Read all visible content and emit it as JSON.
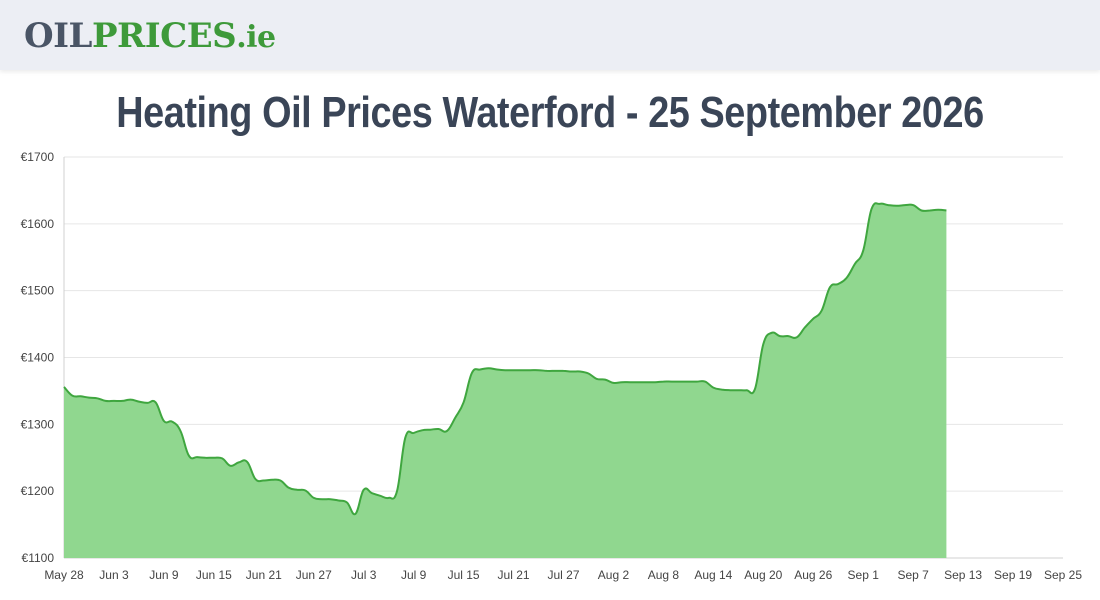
{
  "header": {
    "logo": {
      "part1": "OIL",
      "part2": "PRICES",
      "part3": ".ie"
    }
  },
  "colors": {
    "header_bg": "#eceef4",
    "logo_dark": "#4a5566",
    "logo_green": "#3e9a3a",
    "title": "#3a4557",
    "line": "#3fa63f",
    "area_fill": "#90d78f",
    "grid": "#e6e6e6"
  },
  "chart_data": {
    "type": "area",
    "title": "Heating Oil Prices Waterford - 25 September 2026",
    "xlabel": "",
    "ylabel": "",
    "y_prefix": "€",
    "ylim": [
      1100,
      1700
    ],
    "y_ticks": [
      1100,
      1200,
      1300,
      1400,
      1500,
      1600,
      1700
    ],
    "grid": true,
    "legend": "none",
    "start_date": "May 28",
    "x_ticks": [
      "May 28",
      "Jun 3",
      "Jun 9",
      "Jun 15",
      "Jun 21",
      "Jun 27",
      "Jul 3",
      "Jul 9",
      "Jul 15",
      "Jul 21",
      "Jul 27",
      "Aug 2",
      "Aug 8",
      "Aug 14",
      "Aug 20",
      "Aug 26",
      "Sep 1",
      "Sep 7",
      "Sep 13",
      "Sep 19",
      "Sep 25"
    ],
    "series": [
      {
        "values": [
          {
            "x": "May 28",
            "y": 1356
          },
          {
            "x": "May 29",
            "y": 1343
          },
          {
            "x": "May 30",
            "y": 1342
          },
          {
            "x": "May 31",
            "y": 1340
          },
          {
            "x": "Jun 1",
            "y": 1339
          },
          {
            "x": "Jun 2",
            "y": 1335
          },
          {
            "x": "Jun 3",
            "y": 1335
          },
          {
            "x": "Jun 4",
            "y": 1335
          },
          {
            "x": "Jun 5",
            "y": 1337
          },
          {
            "x": "Jun 6",
            "y": 1334
          },
          {
            "x": "Jun 7",
            "y": 1332
          },
          {
            "x": "Jun 8",
            "y": 1333
          },
          {
            "x": "Jun 9",
            "y": 1305
          },
          {
            "x": "Jun 10",
            "y": 1304
          },
          {
            "x": "Jun 11",
            "y": 1290
          },
          {
            "x": "Jun 12",
            "y": 1253
          },
          {
            "x": "Jun 13",
            "y": 1251
          },
          {
            "x": "Jun 14",
            "y": 1250
          },
          {
            "x": "Jun 15",
            "y": 1250
          },
          {
            "x": "Jun 16",
            "y": 1249
          },
          {
            "x": "Jun 17",
            "y": 1238
          },
          {
            "x": "Jun 18",
            "y": 1243
          },
          {
            "x": "Jun 19",
            "y": 1244
          },
          {
            "x": "Jun 20",
            "y": 1218
          },
          {
            "x": "Jun 21",
            "y": 1216
          },
          {
            "x": "Jun 22",
            "y": 1217
          },
          {
            "x": "Jun 23",
            "y": 1216
          },
          {
            "x": "Jun 24",
            "y": 1205
          },
          {
            "x": "Jun 25",
            "y": 1202
          },
          {
            "x": "Jun 26",
            "y": 1201
          },
          {
            "x": "Jun 27",
            "y": 1190
          },
          {
            "x": "Jun 28",
            "y": 1188
          },
          {
            "x": "Jun 29",
            "y": 1188
          },
          {
            "x": "Jun 30",
            "y": 1186
          },
          {
            "x": "Jul 1",
            "y": 1183
          },
          {
            "x": "Jul 2",
            "y": 1166
          },
          {
            "x": "Jul 3",
            "y": 1202
          },
          {
            "x": "Jul 4",
            "y": 1197
          },
          {
            "x": "Jul 5",
            "y": 1193
          },
          {
            "x": "Jul 6",
            "y": 1190
          },
          {
            "x": "Jul 7",
            "y": 1200
          },
          {
            "x": "Jul 8",
            "y": 1280
          },
          {
            "x": "Jul 9",
            "y": 1287
          },
          {
            "x": "Jul 10",
            "y": 1291
          },
          {
            "x": "Jul 11",
            "y": 1292
          },
          {
            "x": "Jul 12",
            "y": 1293
          },
          {
            "x": "Jul 13",
            "y": 1290
          },
          {
            "x": "Jul 14",
            "y": 1310
          },
          {
            "x": "Jul 15",
            "y": 1333
          },
          {
            "x": "Jul 16",
            "y": 1377
          },
          {
            "x": "Jul 17",
            "y": 1382
          },
          {
            "x": "Jul 18",
            "y": 1384
          },
          {
            "x": "Jul 19",
            "y": 1382
          },
          {
            "x": "Jul 20",
            "y": 1381
          },
          {
            "x": "Jul 21",
            "y": 1381
          },
          {
            "x": "Jul 22",
            "y": 1381
          },
          {
            "x": "Jul 23",
            "y": 1381
          },
          {
            "x": "Jul 24",
            "y": 1381
          },
          {
            "x": "Jul 25",
            "y": 1380
          },
          {
            "x": "Jul 26",
            "y": 1380
          },
          {
            "x": "Jul 27",
            "y": 1380
          },
          {
            "x": "Jul 28",
            "y": 1379
          },
          {
            "x": "Jul 29",
            "y": 1379
          },
          {
            "x": "Jul 30",
            "y": 1376
          },
          {
            "x": "Jul 31",
            "y": 1368
          },
          {
            "x": "Aug 1",
            "y": 1367
          },
          {
            "x": "Aug 2",
            "y": 1362
          },
          {
            "x": "Aug 3",
            "y": 1363
          },
          {
            "x": "Aug 4",
            "y": 1363
          },
          {
            "x": "Aug 5",
            "y": 1363
          },
          {
            "x": "Aug 6",
            "y": 1363
          },
          {
            "x": "Aug 7",
            "y": 1363
          },
          {
            "x": "Aug 8",
            "y": 1364
          },
          {
            "x": "Aug 9",
            "y": 1364
          },
          {
            "x": "Aug 10",
            "y": 1364
          },
          {
            "x": "Aug 11",
            "y": 1364
          },
          {
            "x": "Aug 12",
            "y": 1364
          },
          {
            "x": "Aug 13",
            "y": 1364
          },
          {
            "x": "Aug 14",
            "y": 1355
          },
          {
            "x": "Aug 15",
            "y": 1352
          },
          {
            "x": "Aug 16",
            "y": 1351
          },
          {
            "x": "Aug 17",
            "y": 1351
          },
          {
            "x": "Aug 18",
            "y": 1351
          },
          {
            "x": "Aug 19",
            "y": 1353
          },
          {
            "x": "Aug 20",
            "y": 1420
          },
          {
            "x": "Aug 21",
            "y": 1437
          },
          {
            "x": "Aug 22",
            "y": 1432
          },
          {
            "x": "Aug 23",
            "y": 1432
          },
          {
            "x": "Aug 24",
            "y": 1430
          },
          {
            "x": "Aug 25",
            "y": 1445
          },
          {
            "x": "Aug 26",
            "y": 1458
          },
          {
            "x": "Aug 27",
            "y": 1470
          },
          {
            "x": "Aug 28",
            "y": 1505
          },
          {
            "x": "Aug 29",
            "y": 1510
          },
          {
            "x": "Aug 30",
            "y": 1519
          },
          {
            "x": "Aug 31",
            "y": 1540
          },
          {
            "x": "Sep 1",
            "y": 1560
          },
          {
            "x": "Sep 2",
            "y": 1622
          },
          {
            "x": "Sep 3",
            "y": 1630
          },
          {
            "x": "Sep 4",
            "y": 1628
          },
          {
            "x": "Sep 5",
            "y": 1627
          },
          {
            "x": "Sep 6",
            "y": 1628
          },
          {
            "x": "Sep 7",
            "y": 1628
          },
          {
            "x": "Sep 8",
            "y": 1620
          },
          {
            "x": "Sep 9",
            "y": 1620
          },
          {
            "x": "Sep 10",
            "y": 1621
          },
          {
            "x": "Sep 11",
            "y": 1620
          }
        ]
      }
    ]
  }
}
